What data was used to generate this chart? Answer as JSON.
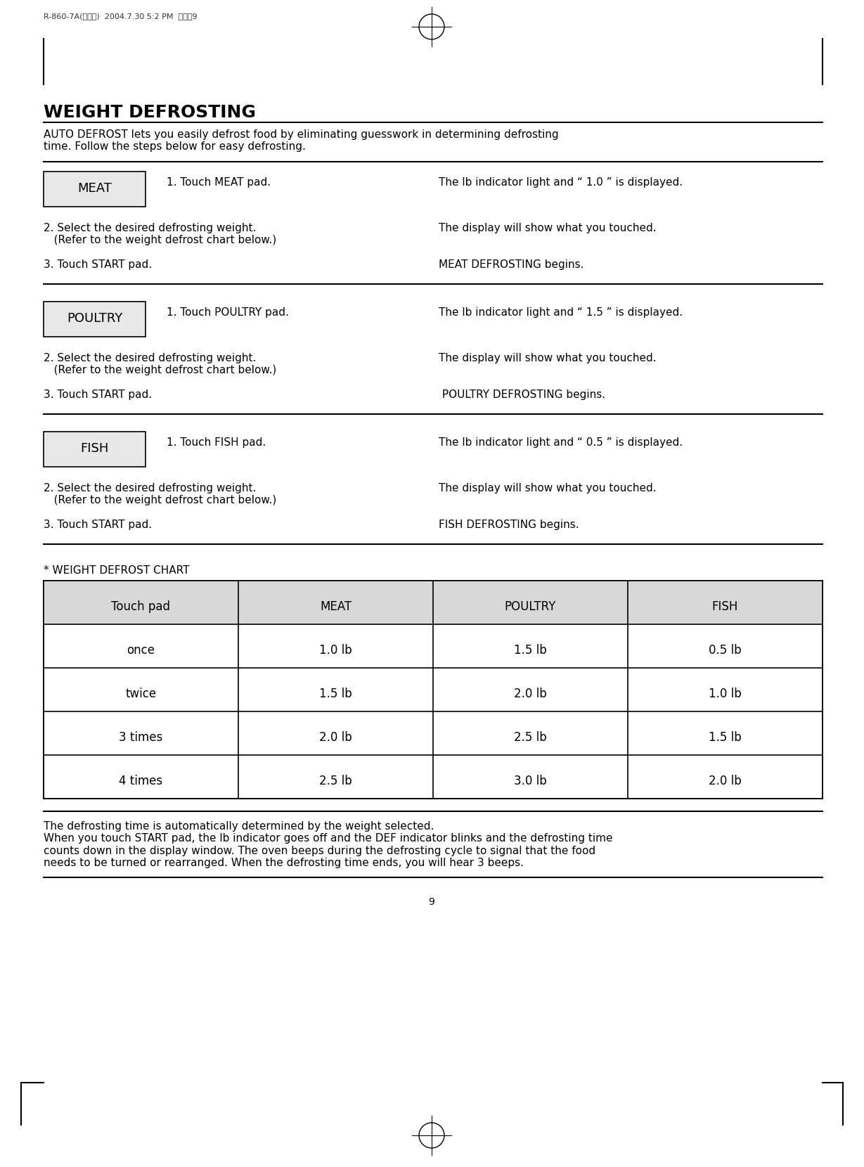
{
  "page_header": "R-860-7A(영기번)  2004.7.30 5:2 PM  페이지9",
  "title": "WEIGHT DEFROSTING",
  "intro_text": "AUTO DEFROST lets you easily defrost food by eliminating guesswork in determining defrosting\ntime. Follow the steps below for easy defrosting.",
  "sections": [
    {
      "label": "MEAT",
      "step1_left": "1. Touch MEAT pad.",
      "step1_right": "The lb indicator light and “ 1.0 ” is displayed.",
      "step2_left": "2. Select the desired defrosting weight.\n   (Refer to the weight defrost chart below.)",
      "step2_right": "The display will show what you touched.",
      "step3_left": "3. Touch START pad.",
      "step3_right": "MEAT DEFROSTING begins."
    },
    {
      "label": "POULTRY",
      "step1_left": "1. Touch POULTRY pad.",
      "step1_right": "The lb indicator light and “ 1.5 ” is displayed.",
      "step2_left": "2. Select the desired defrosting weight.\n   (Refer to the weight defrost chart below.)",
      "step2_right": "The display will show what you touched.",
      "step3_left": "3. Touch START pad.",
      "step3_right": " POULTRY DEFROSTING begins."
    },
    {
      "label": "FISH",
      "step1_left": "1. Touch FISH pad.",
      "step1_right": "The lb indicator light and “ 0.5 ” is displayed.",
      "step2_left": "2. Select the desired defrosting weight.\n   (Refer to the weight defrost chart below.)",
      "step2_right": "The display will show what you touched.",
      "step3_left": "3. Touch START pad.",
      "step3_right": "FISH DEFROSTING begins."
    }
  ],
  "chart_title": "* WEIGHT DEFROST CHART",
  "table_headers": [
    "Touch pad",
    "MEAT",
    "POULTRY",
    "FISH"
  ],
  "table_rows": [
    [
      "once",
      "1.0 lb",
      "1.5 lb",
      "0.5 lb"
    ],
    [
      "twice",
      "1.5 lb",
      "2.0 lb",
      "1.0 lb"
    ],
    [
      "3 times",
      "2.0 lb",
      "2.5 lb",
      "1.5 lb"
    ],
    [
      "4 times",
      "2.5 lb",
      "3.0 lb",
      "2.0 lb"
    ]
  ],
  "footer_text": "The defrosting time is automatically determined by the weight selected.\nWhen you touch START pad, the lb indicator goes off and the DEF indicator blinks and the defrosting time\ncounts down in the display window. The oven beeps during the defrosting cycle to signal that the food\nneeds to be turned or rearranged. When the defrosting time ends, you will hear 3 beeps.",
  "page_number": "9",
  "bg_color": "#ffffff",
  "text_color": "#000000",
  "header_bg": "#d8d8d8",
  "box_bg": "#e8e8e8",
  "font_size_title": 18,
  "font_size_body": 11,
  "font_size_header": 9,
  "font_size_page": 10
}
